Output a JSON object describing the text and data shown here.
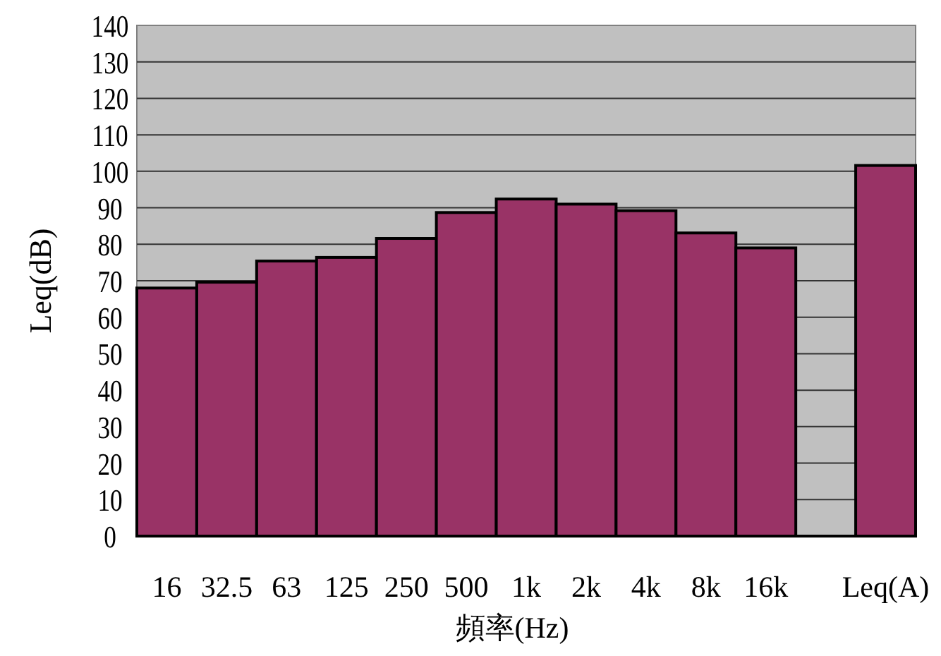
{
  "chart_data": {
    "type": "bar",
    "xlabel": "頻率(Hz)",
    "ylabel": "Leq(dB)",
    "categories": [
      "16",
      "32.5",
      "63",
      "125",
      "250",
      "500",
      "1k",
      "2k",
      "4k",
      "8k",
      "16k",
      null,
      "Leq(A)"
    ],
    "values": [
      68,
      69.6,
      75.4,
      76.4,
      81.6,
      88.7,
      92.4,
      91,
      89.2,
      83.1,
      79,
      null,
      101.6
    ],
    "color": "#993366",
    "ylim": [
      0,
      140
    ],
    "yticks": [
      0,
      10,
      20,
      30,
      40,
      50,
      60,
      70,
      80,
      90,
      100,
      110,
      120,
      130,
      140
    ],
    "grid": "y"
  }
}
